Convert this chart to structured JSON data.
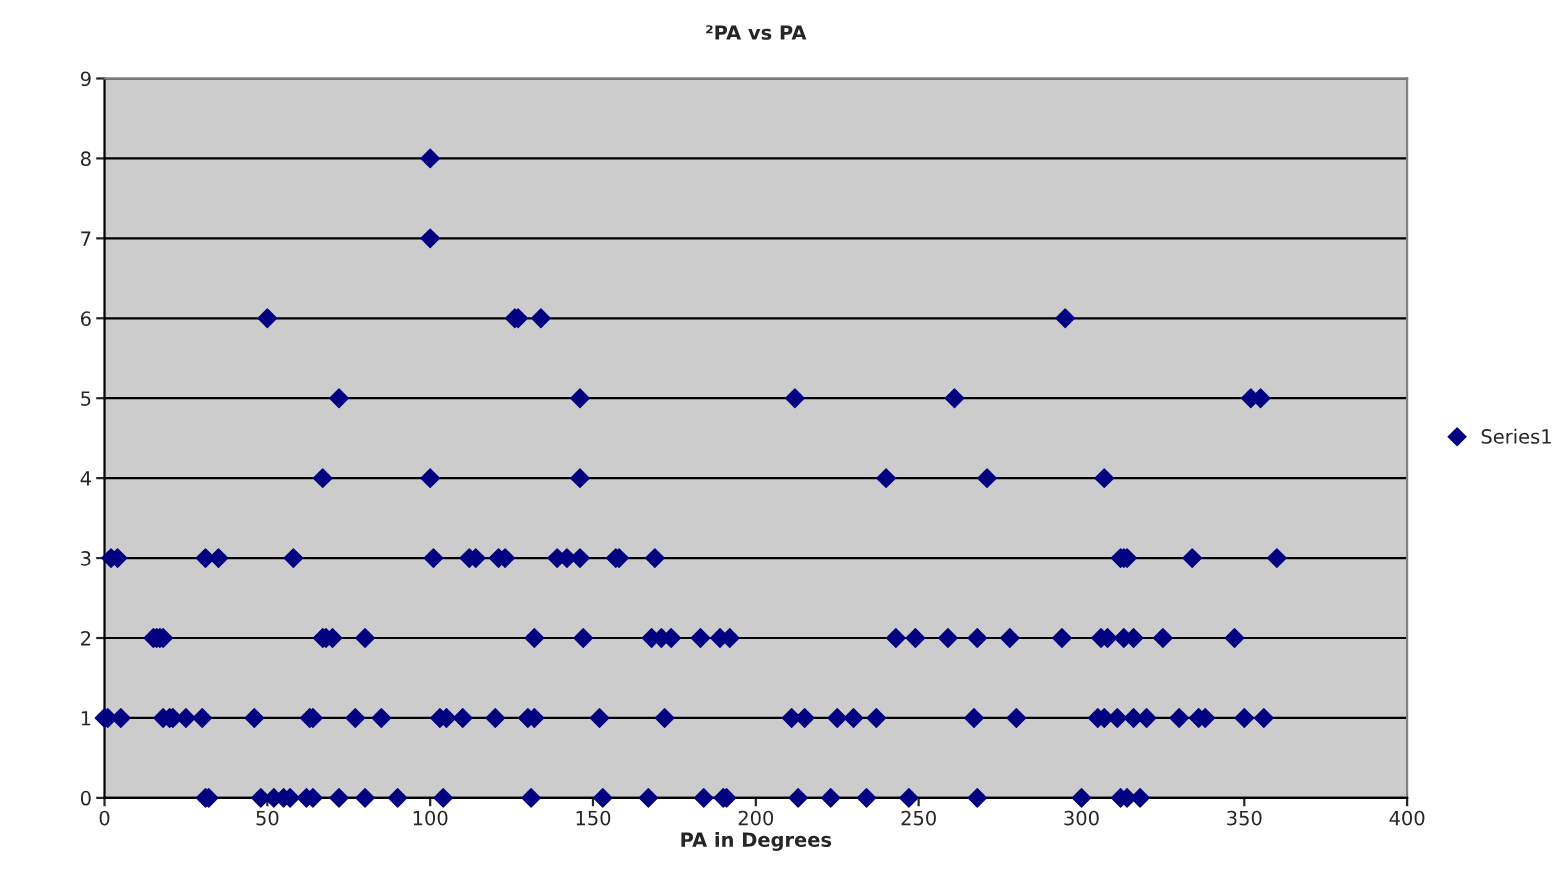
{
  "chart_data": {
    "type": "scatter",
    "title": "²PA vs PA",
    "xlabel": "PA in Degrees",
    "x": [
      100,
      100,
      50,
      126,
      127,
      134,
      295,
      72,
      146,
      212,
      261,
      352,
      355,
      67,
      100,
      146,
      240,
      271,
      307,
      2,
      4,
      31,
      35,
      58,
      101,
      112,
      114,
      121,
      123,
      139,
      142,
      146,
      157,
      158,
      169,
      312,
      313,
      314,
      334,
      360,
      15,
      16,
      17,
      18,
      67,
      68,
      70,
      80,
      132,
      147,
      168,
      171,
      174,
      183,
      189,
      192,
      243,
      249,
      259,
      268,
      278,
      294,
      306,
      308,
      313,
      316,
      325,
      347,
      0,
      1,
      5,
      18,
      20,
      21,
      25,
      30,
      46,
      63,
      64,
      77,
      85,
      103,
      105,
      110,
      120,
      130,
      132,
      152,
      172,
      211,
      215,
      225,
      230,
      237,
      267,
      280,
      305,
      307,
      311,
      316,
      320,
      330,
      336,
      338,
      350,
      356,
      31,
      32,
      48,
      52,
      55,
      57,
      62,
      64,
      72,
      80,
      90,
      104,
      131,
      153,
      167,
      184,
      190,
      191,
      213,
      223,
      234,
      247,
      268,
      300,
      312,
      314,
      318
    ],
    "series": [
      {
        "name": "Series1",
        "color": "#000080",
        "values": [
          8,
          7,
          6,
          6,
          6,
          6,
          6,
          5,
          5,
          5,
          5,
          5,
          5,
          4,
          4,
          4,
          4,
          4,
          4,
          3,
          3,
          3,
          3,
          3,
          3,
          3,
          3,
          3,
          3,
          3,
          3,
          3,
          3,
          3,
          3,
          3,
          3,
          3,
          3,
          3,
          2,
          2,
          2,
          2,
          2,
          2,
          2,
          2,
          2,
          2,
          2,
          2,
          2,
          2,
          2,
          2,
          2,
          2,
          2,
          2,
          2,
          2,
          2,
          2,
          2,
          2,
          2,
          2,
          1,
          1,
          1,
          1,
          1,
          1,
          1,
          1,
          1,
          1,
          1,
          1,
          1,
          1,
          1,
          1,
          1,
          1,
          1,
          1,
          1,
          1,
          1,
          1,
          1,
          1,
          1,
          1,
          1,
          1,
          1,
          1,
          1,
          1,
          1,
          1,
          1,
          1,
          0,
          0,
          0,
          0,
          0,
          0,
          0,
          0,
          0,
          0,
          0,
          0,
          0,
          0,
          0,
          0,
          0,
          0,
          0,
          0,
          0,
          0,
          0,
          0,
          0,
          0,
          0
        ]
      }
    ],
    "xlim": [
      0,
      400
    ],
    "xticks": [
      0,
      50,
      100,
      150,
      200,
      250,
      300,
      350,
      400
    ],
    "ylim": [
      0,
      9
    ],
    "yticks": [
      0,
      1,
      2,
      3,
      4,
      5,
      6,
      7,
      8,
      9
    ],
    "grid": "y",
    "legend": "right",
    "marker": "diamond"
  }
}
